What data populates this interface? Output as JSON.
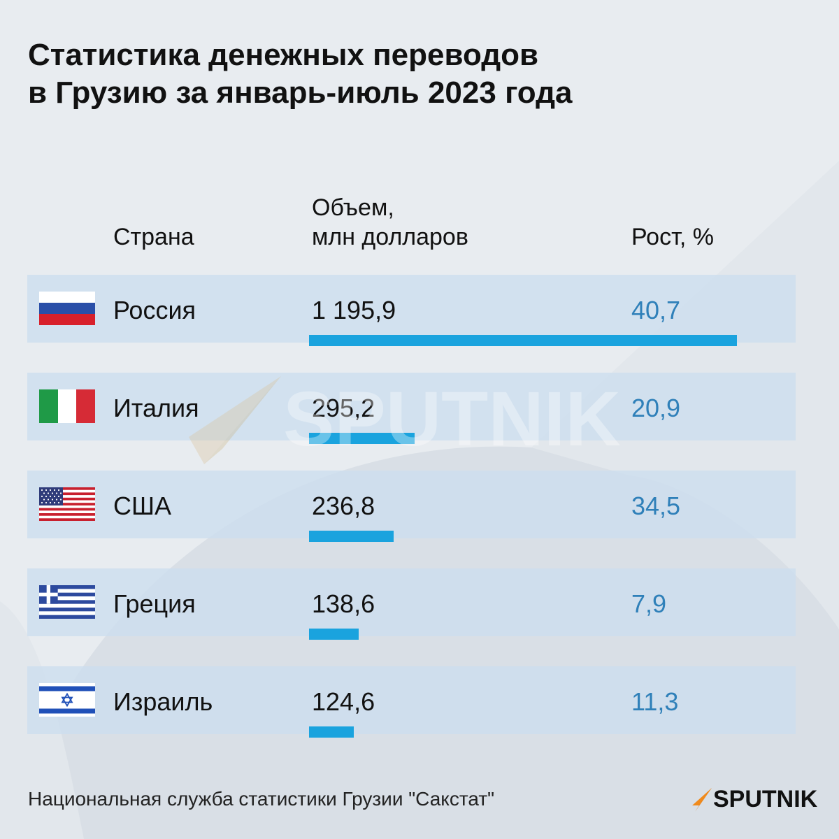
{
  "title_lines": [
    "Статистика денежных переводов",
    "в Грузию за январь-июль 2023 года"
  ],
  "headers": {
    "country": "Страна",
    "volume_lines": [
      "Объем,",
      "млн долларов"
    ],
    "growth": "Рост, %"
  },
  "chart_data": {
    "type": "bar",
    "title": "Статистика денежных переводов в Грузию за январь-июль 2023 года",
    "categories": [
      "Россия",
      "Италия",
      "США",
      "Греция",
      "Израиль"
    ],
    "series": [
      {
        "name": "Объем, млн долларов",
        "values": [
          1195.9,
          295.2,
          236.8,
          138.6,
          124.6
        ]
      },
      {
        "name": "Рост, %",
        "values": [
          40.7,
          20.9,
          34.5,
          7.9,
          11.3
        ]
      }
    ],
    "value_labels": [
      "1 195,9",
      "295,2",
      "236,8",
      "138,6",
      "124,6"
    ],
    "growth_labels": [
      "40,7",
      "20,9",
      "34,5",
      "7,9",
      "11,3"
    ],
    "orientation": "horizontal",
    "bar_color": "#1aa3de",
    "growth_color": "#2f80b9"
  },
  "rows": [
    {
      "country": "Россия",
      "flag": "russia-flag-icon",
      "volume": "1 195,9",
      "growth": "40,7"
    },
    {
      "country": "Италия",
      "flag": "italy-flag-icon",
      "volume": "295,2",
      "growth": "20,9"
    },
    {
      "country": "США",
      "flag": "usa-flag-icon",
      "volume": "236,8",
      "growth": "34,5"
    },
    {
      "country": "Греция",
      "flag": "greece-flag-icon",
      "volume": "138,6",
      "growth": "7,9"
    },
    {
      "country": "Израиль",
      "flag": "israel-flag-icon",
      "volume": "124,6",
      "growth": "11,3"
    }
  ],
  "watermark_text": "SPUTNIK",
  "footer": {
    "source": "Национальная служба статистики Грузии \"Сакстат\"",
    "logo_text": "SPUTNIK",
    "logo_icon": "sputnik-logo-icon"
  },
  "colors": {
    "background": "#e8ecf0",
    "row_background": "#cddeee",
    "accent": "#1aa3de",
    "logo_orange": "#f08a1c"
  }
}
